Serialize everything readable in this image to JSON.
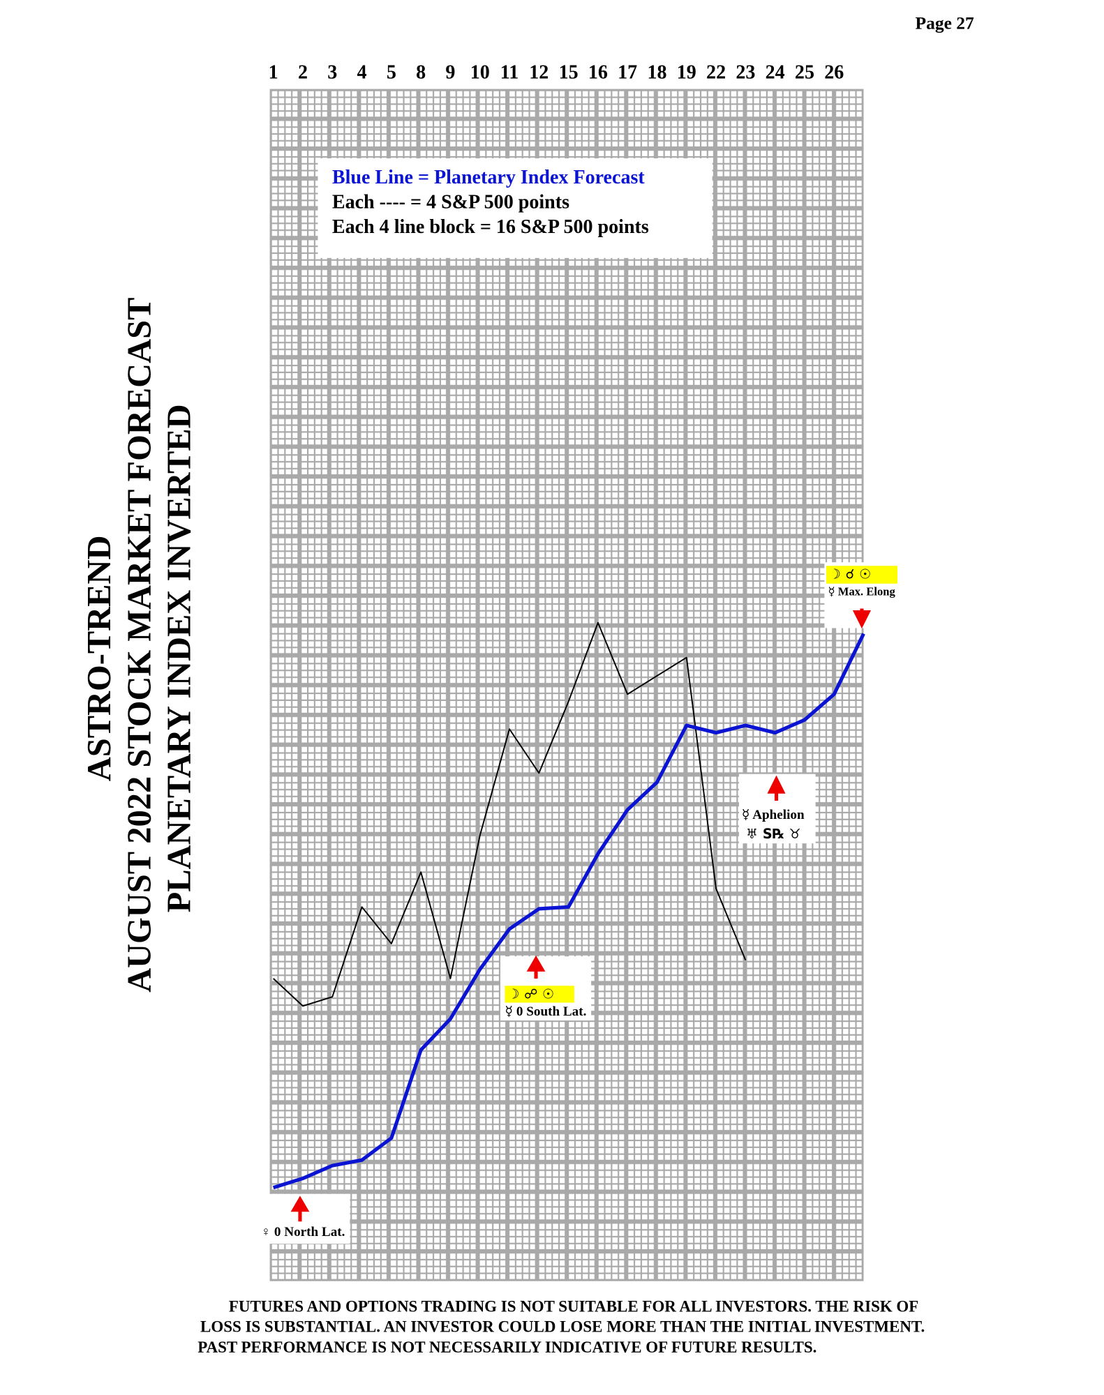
{
  "header": {
    "page": "Page  27"
  },
  "title": {
    "lines": [
      "ASTRO-TREND",
      "AUGUST 2022  STOCK MARKET FORECAST",
      "PLANETARY INDEX INVERTED"
    ]
  },
  "chart_data": {
    "type": "line",
    "categories": [
      "1",
      "2",
      "3",
      "4",
      "5",
      "8",
      "9",
      "10",
      "11",
      "12",
      "15",
      "16",
      "17",
      "18",
      "19",
      "22",
      "23",
      "24",
      "25",
      "26",
      null
    ],
    "ylim": [
      0,
      650
    ],
    "series": [
      {
        "name": "Blue Line = Planetary Index Forecast",
        "color": "#0a14d2",
        "values": [
          51,
          56,
          63,
          66,
          78,
          126,
          143,
          170,
          192,
          203,
          204,
          233,
          257,
          272,
          303,
          299,
          303,
          299,
          306,
          320,
          353
        ]
      },
      {
        "color": "#000000",
        "values": [
          165,
          150,
          155,
          204,
          184,
          223,
          165,
          243,
          301,
          277,
          316,
          359,
          320,
          330,
          340,
          214,
          175,
          null,
          null,
          null,
          null
        ]
      }
    ],
    "notes": [
      "Each ---- =   4 S&P 500 points",
      "Each 4 line block =  16  S&P 500 points"
    ],
    "annotations": [
      {
        "label": "♀ 0 North Lat."
      },
      {
        "symbols": "☽ ☍ ☉",
        "label": "☿ 0 South Lat."
      },
      {
        "label": "☿ Aphelion",
        "symbols": "♅ S℞ ♉"
      },
      {
        "symbols": "☽ ☌ ☉",
        "label": "☿ Max. Elong"
      }
    ]
  },
  "disclaimer": [
    "FUTURES AND OPTIONS TRADING IS NOT SUITABLE FOR ALL INVESTORS.  THE RISK OF",
    "LOSS IS SUBSTANTIAL.  AN INVESTOR COULD LOSE MORE THAN THE INITIAL INVESTMENT.",
    "PAST PERFORMANCE IS NOT NECESSARILY INDICATIVE OF FUTURE RESULTS."
  ]
}
